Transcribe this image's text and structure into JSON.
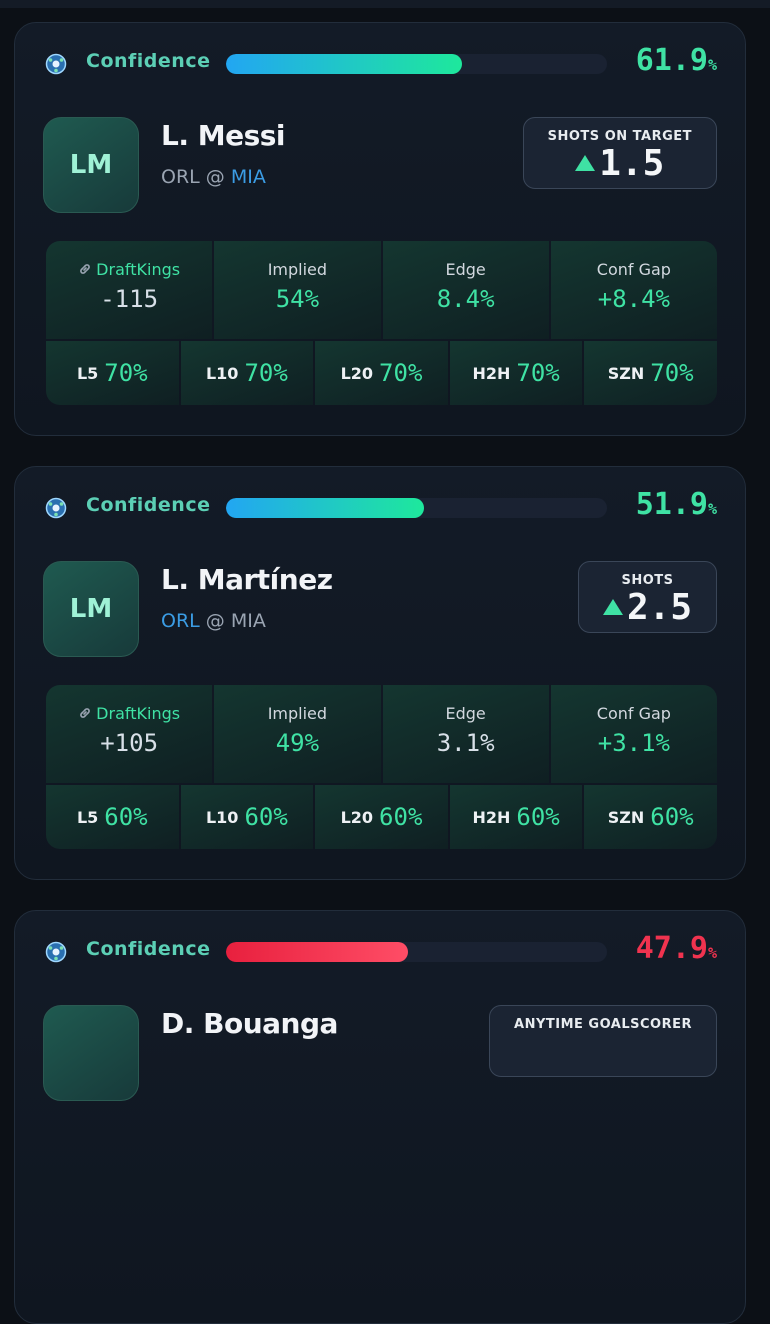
{
  "cards": [
    {
      "confidence_label": "Confidence",
      "confidence_value": 61.9,
      "confidence_suffix": "%",
      "bar_colors": [
        "#22a6f2",
        "#1ee89c"
      ],
      "value_color": "#3fe2a4",
      "avatar": "LM",
      "player": "L. Messi",
      "teams": [
        "ORL",
        "MIA"
      ],
      "separator": "@",
      "highlight_team": 1,
      "prop": {
        "label": "SHOTS ON TARGET",
        "line": "1.5"
      },
      "stats": [
        {
          "label": "DraftKings",
          "value": "-115",
          "color": "#d8e0e8",
          "book": true
        },
        {
          "label": "Implied",
          "value": "54%",
          "color": "#3fe2a4"
        },
        {
          "label": "Edge",
          "value": "8.4%",
          "color": "#3fe2a4"
        },
        {
          "label": "Conf Gap",
          "value": "+8.4%",
          "color": "#3fe2a4"
        }
      ],
      "recent": [
        {
          "label": "L5",
          "value": "70%"
        },
        {
          "label": "L10",
          "value": "70%"
        },
        {
          "label": "L20",
          "value": "70%"
        },
        {
          "label": "H2H",
          "value": "70%"
        },
        {
          "label": "SZN",
          "value": "70%"
        }
      ]
    },
    {
      "confidence_label": "Confidence",
      "confidence_value": 51.9,
      "confidence_suffix": "%",
      "bar_colors": [
        "#22a6f2",
        "#1ee89c"
      ],
      "value_color": "#3fe2a4",
      "avatar": "LM",
      "player": "L. Martínez",
      "teams": [
        "ORL",
        "MIA"
      ],
      "separator": "@",
      "highlight_team": 0,
      "prop": {
        "label": "SHOTS",
        "line": "2.5"
      },
      "stats": [
        {
          "label": "DraftKings",
          "value": "+105",
          "color": "#d8e0e8",
          "book": true
        },
        {
          "label": "Implied",
          "value": "49%",
          "color": "#3fe2a4"
        },
        {
          "label": "Edge",
          "value": "3.1%",
          "color": "#d8e0e8"
        },
        {
          "label": "Conf Gap",
          "value": "+3.1%",
          "color": "#3fe2a4"
        }
      ],
      "recent": [
        {
          "label": "L5",
          "value": "60%"
        },
        {
          "label": "L10",
          "value": "60%"
        },
        {
          "label": "L20",
          "value": "60%"
        },
        {
          "label": "H2H",
          "value": "60%"
        },
        {
          "label": "SZN",
          "value": "60%"
        }
      ]
    },
    {
      "confidence_label": "Confidence",
      "confidence_value": 47.9,
      "confidence_suffix": "%",
      "bar_colors": [
        "#e8203e",
        "#ff4d66"
      ],
      "value_color": "#f0334f",
      "avatar": "",
      "player": "D. Bouanga",
      "prop": {
        "label": "ANYTIME GOALSCORER"
      }
    }
  ]
}
